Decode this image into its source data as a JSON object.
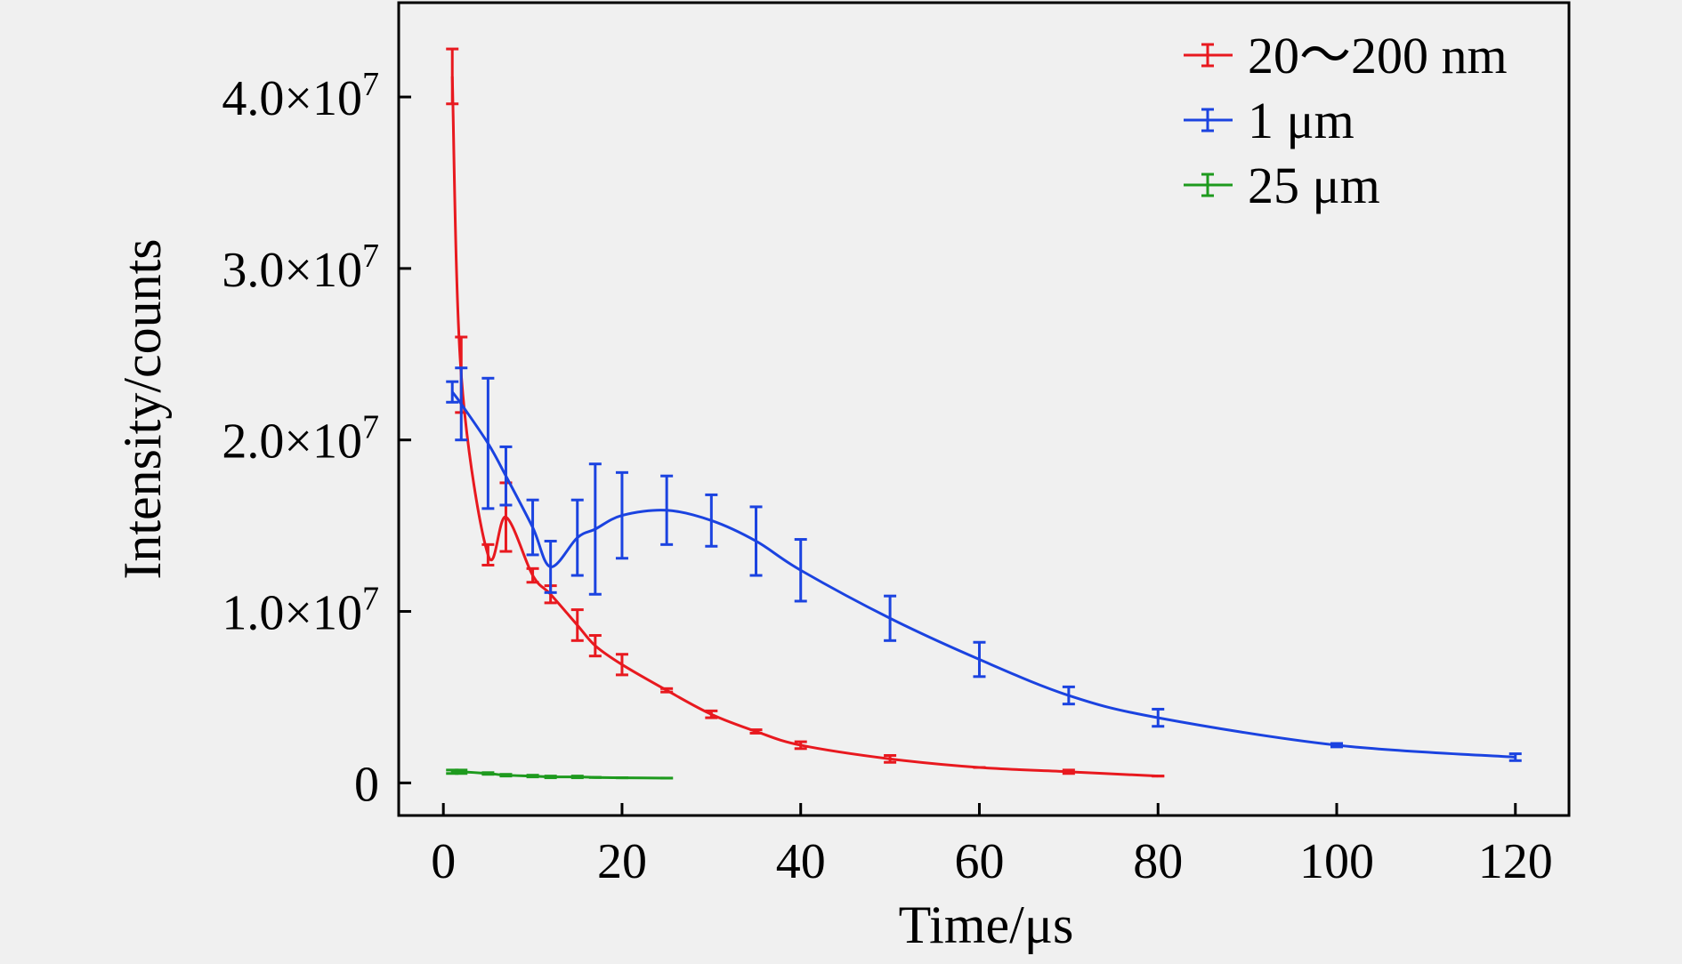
{
  "chart_data": {
    "type": "line",
    "title": "",
    "xlabel": "Time/μs",
    "ylabel": "Intensity/counts",
    "xlim": [
      -5,
      126
    ],
    "ylim": [
      -1900000,
      45500000
    ],
    "xticks": [
      0,
      20,
      40,
      60,
      80,
      100,
      120
    ],
    "xtick_labels": [
      "0",
      "20",
      "40",
      "60",
      "80",
      "100",
      "120"
    ],
    "yticks": [
      0,
      10000000,
      20000000,
      30000000,
      40000000
    ],
    "ytick_labels": [
      {
        "mantissa": "0",
        "exponent": ""
      },
      {
        "mantissa": "1.0×10",
        "exponent": "7"
      },
      {
        "mantissa": "2.0×10",
        "exponent": "7"
      },
      {
        "mantissa": "3.0×10",
        "exponent": "7"
      },
      {
        "mantissa": "4.0×10",
        "exponent": "7"
      }
    ],
    "grid": false,
    "legend_position": "top-right",
    "series": [
      {
        "name": "20〜200 nm",
        "color": "#e8191f",
        "points": [
          {
            "x": 1,
            "y": 41200000,
            "err": 1600000
          },
          {
            "x": 2,
            "y": 23800000,
            "err": 2200000
          },
          {
            "x": 5,
            "y": 13300000,
            "err": 600000
          },
          {
            "x": 7,
            "y": 15500000,
            "err": 2000000
          },
          {
            "x": 10,
            "y": 12100000,
            "err": 400000
          },
          {
            "x": 12,
            "y": 11000000,
            "err": 500000
          },
          {
            "x": 15,
            "y": 9200000,
            "err": 900000
          },
          {
            "x": 17,
            "y": 8000000,
            "err": 600000
          },
          {
            "x": 20,
            "y": 6900000,
            "err": 600000
          },
          {
            "x": 25,
            "y": 5400000,
            "err": 100000
          },
          {
            "x": 30,
            "y": 4000000,
            "err": 200000
          },
          {
            "x": 35,
            "y": 3000000,
            "err": 100000
          },
          {
            "x": 40,
            "y": 2200000,
            "err": 200000
          },
          {
            "x": 50,
            "y": 1400000,
            "err": 200000
          },
          {
            "x": 60,
            "y": 900000,
            "err": 0
          },
          {
            "x": 70,
            "y": 650000,
            "err": 100000
          },
          {
            "x": 80,
            "y": 400000,
            "err": 0
          }
        ]
      },
      {
        "name": "1 μm",
        "color": "#1b43e0",
        "points": [
          {
            "x": 1,
            "y": 22800000,
            "err": 600000
          },
          {
            "x": 2,
            "y": 22100000,
            "err": 2100000
          },
          {
            "x": 5,
            "y": 19800000,
            "err": 3800000
          },
          {
            "x": 7,
            "y": 17900000,
            "err": 1700000
          },
          {
            "x": 10,
            "y": 14900000,
            "err": 1600000
          },
          {
            "x": 12,
            "y": 12600000,
            "err": 1500000
          },
          {
            "x": 15,
            "y": 14300000,
            "err": 2200000
          },
          {
            "x": 17,
            "y": 14800000,
            "err": 3800000
          },
          {
            "x": 20,
            "y": 15600000,
            "err": 2500000
          },
          {
            "x": 25,
            "y": 15900000,
            "err": 2000000
          },
          {
            "x": 30,
            "y": 15300000,
            "err": 1500000
          },
          {
            "x": 35,
            "y": 14100000,
            "err": 2000000
          },
          {
            "x": 40,
            "y": 12400000,
            "err": 1800000
          },
          {
            "x": 50,
            "y": 9600000,
            "err": 1300000
          },
          {
            "x": 60,
            "y": 7200000,
            "err": 1000000
          },
          {
            "x": 70,
            "y": 5100000,
            "err": 500000
          },
          {
            "x": 80,
            "y": 3800000,
            "err": 500000
          },
          {
            "x": 100,
            "y": 2200000,
            "err": 100000
          },
          {
            "x": 120,
            "y": 1500000,
            "err": 200000
          }
        ]
      },
      {
        "name": "25 μm",
        "color": "#1e9a1e",
        "points": [
          {
            "x": 1,
            "y": 650000,
            "err": 100000
          },
          {
            "x": 2,
            "y": 650000,
            "err": 100000
          },
          {
            "x": 5,
            "y": 550000,
            "err": 50000
          },
          {
            "x": 7,
            "y": 450000,
            "err": 50000
          },
          {
            "x": 10,
            "y": 400000,
            "err": 50000
          },
          {
            "x": 12,
            "y": 350000,
            "err": 50000
          },
          {
            "x": 15,
            "y": 350000,
            "err": 50000
          },
          {
            "x": 17,
            "y": 320000,
            "err": 0
          },
          {
            "x": 20,
            "y": 300000,
            "err": 0
          },
          {
            "x": 25,
            "y": 280000,
            "err": 0
          }
        ]
      }
    ]
  }
}
